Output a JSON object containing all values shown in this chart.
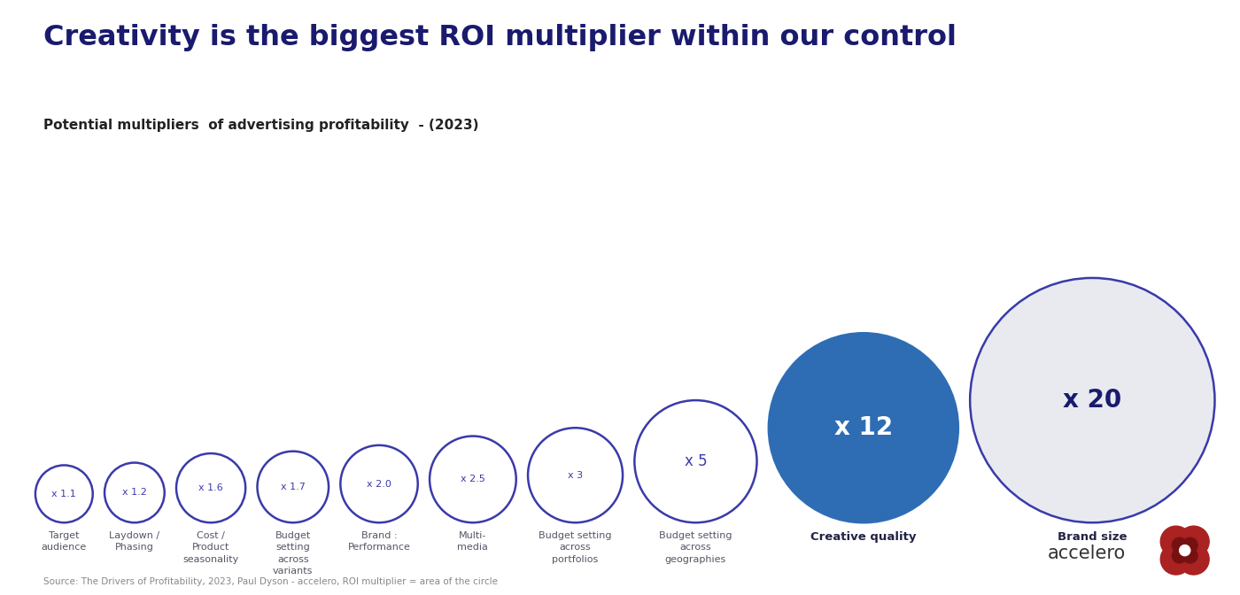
{
  "title": "Creativity is the biggest ROI multiplier within our control",
  "subtitle": "Potential multipliers  of advertising profitability  - (2023)",
  "source": "Source: The Drivers of Profitability, 2023, Paul Dyson - accelero, ROI multiplier = area of the circle",
  "background_color": "#ffffff",
  "title_color": "#1a1a6e",
  "subtitle_color": "#222222",
  "circles": [
    {
      "multiplier": 1.1,
      "label": "Target\naudience",
      "fill": "#ffffff",
      "edge": "#3a3aaa",
      "text_color": "#3a3aaa",
      "label_bold": false
    },
    {
      "multiplier": 1.2,
      "label": "Laydown /\nPhasing",
      "fill": "#ffffff",
      "edge": "#3a3aaa",
      "text_color": "#3a3aaa",
      "label_bold": false
    },
    {
      "multiplier": 1.6,
      "label": "Cost /\nProduct\nseasonality",
      "fill": "#ffffff",
      "edge": "#3a3aaa",
      "text_color": "#3a3aaa",
      "label_bold": false
    },
    {
      "multiplier": 1.7,
      "label": "Budget\nsetting\nacross\nvariants",
      "fill": "#ffffff",
      "edge": "#3a3aaa",
      "text_color": "#3a3aaa",
      "label_bold": false
    },
    {
      "multiplier": 2.0,
      "label": "Brand :\nPerformance",
      "fill": "#ffffff",
      "edge": "#3a3aaa",
      "text_color": "#3a3aaa",
      "label_bold": false
    },
    {
      "multiplier": 2.5,
      "label": "Multi-\nmedia",
      "fill": "#ffffff",
      "edge": "#3a3aaa",
      "text_color": "#3a3aaa",
      "label_bold": false
    },
    {
      "multiplier": 3.0,
      "label": "Budget setting\nacross\nportfolios",
      "fill": "#ffffff",
      "edge": "#3a3aaa",
      "text_color": "#3a3aaa",
      "label_bold": false
    },
    {
      "multiplier": 5.0,
      "label": "Budget setting\nacross\ngeographies",
      "fill": "#ffffff",
      "edge": "#3a3aaa",
      "text_color": "#3a3aaa",
      "label_bold": false
    },
    {
      "multiplier": 12.0,
      "label": "Creative quality",
      "fill": "#2e6db4",
      "edge": "#2e6db4",
      "text_color": "#ffffff",
      "label_bold": true
    },
    {
      "multiplier": 20.0,
      "label": "Brand size",
      "fill": "#e8eaf0",
      "edge": "#3a3aaa",
      "text_color": "#1a1a6e",
      "label_bold": true
    }
  ],
  "multiplier_texts": [
    "x 1.1",
    "x 1.2",
    "x 1.6",
    "x 1.7",
    "x 2.0",
    "x 2.5",
    "x 3",
    "x 5",
    "x 12",
    "x 20"
  ],
  "label_color": "#555566",
  "label_fontsize": 8.0,
  "fig_width": 14.0,
  "fig_height": 6.72,
  "dpi": 100
}
